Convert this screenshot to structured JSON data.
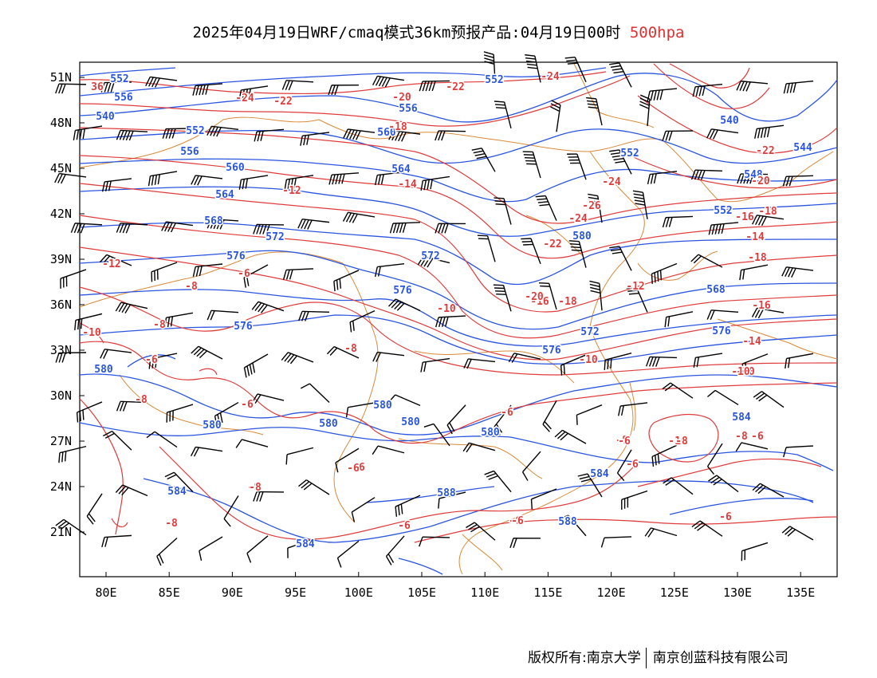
{
  "header": {
    "title": "2025年04月19日WRF/cmaq模式36km预报产品:04月19日00时",
    "level": "500hpa"
  },
  "colors": {
    "height": "#2a55e0",
    "temperature": "#e03c3c",
    "border": "#d98a3a",
    "wind": "#000000"
  },
  "axes": {
    "lon_labels": [
      "80E",
      "85E",
      "90E",
      "95E",
      "100E",
      "105E",
      "110E",
      "115E",
      "120E",
      "125E",
      "130E",
      "135E"
    ],
    "lat_labels": [
      "51N",
      "48N",
      "45N",
      "42N",
      "39N",
      "36N",
      "33N",
      "30N",
      "27N",
      "24N",
      "21N"
    ]
  },
  "height_labels": [
    "552",
    "556",
    "540",
    "552",
    "556",
    "560",
    "564",
    "568",
    "572",
    "576",
    "576",
    "580",
    "576",
    "572",
    "580",
    "580",
    "576",
    "564",
    "556",
    "552",
    "548",
    "552",
    "580",
    "568",
    "572",
    "576",
    "584",
    "588",
    "580",
    "584",
    "584",
    "584",
    "580",
    "588",
    "540",
    "544",
    "572",
    "552",
    "560",
    "580"
  ],
  "temperature_labels": [
    "36",
    "-24",
    "-22",
    "-20",
    "-22",
    "-24",
    "-18",
    "-12",
    "-14",
    "-12",
    "-10",
    "-8",
    "-10",
    "-8",
    "-6",
    "-10",
    "-8",
    "-6",
    "-6",
    "-8",
    "-6",
    "-10",
    "-8",
    "-6",
    "-8",
    "-6",
    "-6",
    "-6",
    "-8",
    "-6",
    "-6",
    "-10",
    "-14",
    "-16",
    "-18",
    "-16",
    "-18",
    "-20",
    "-22",
    "-24",
    "-26",
    "-24",
    "-22",
    "-20",
    "-18",
    "-16",
    "-14",
    "-12",
    "-10",
    "-8",
    "-8",
    "-6",
    "-6",
    "-8",
    "-6"
  ],
  "footer": {
    "copyright_left": "版权所有:南京大学",
    "copyright_right": "南京创蓝科技有限公司"
  }
}
